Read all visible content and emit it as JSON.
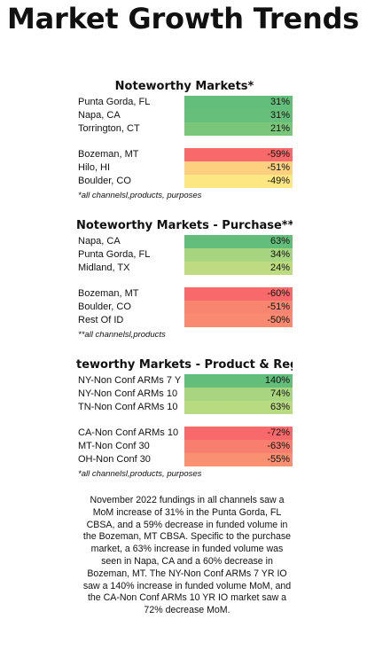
{
  "page_title": "Market Growth Trends",
  "sections": [
    {
      "title": "Noteworthy Markets*",
      "top_rows": [
        {
          "label": "Punta Gorda, FL",
          "value": "31%",
          "color": "#63be7b"
        },
        {
          "label": "Napa, CA",
          "value": "31%",
          "color": "#66bf7b"
        },
        {
          "label": "Torrington, CT",
          "value": "21%",
          "color": "#7ac77c"
        }
      ],
      "bottom_rows": [
        {
          "label": "Bozeman, MT",
          "value": "-59%",
          "color": "#f8696b"
        },
        {
          "label": "Hilo, HI",
          "value": "-51%",
          "color": "#fdd07f"
        },
        {
          "label": "Boulder, CO",
          "value": "-49%",
          "color": "#fde783"
        }
      ],
      "footnote": "*all channelsl,products, purposes"
    },
    {
      "title": "Noteworthy Markets - Purchase**",
      "top_rows": [
        {
          "label": "Napa, CA",
          "value": "63%",
          "color": "#63be7b"
        },
        {
          "label": "Punta Gorda, FL",
          "value": "34%",
          "color": "#a6d47f"
        },
        {
          "label": "Midland, TX",
          "value": "24%",
          "color": "#bedb81"
        }
      ],
      "bottom_rows": [
        {
          "label": "Bozeman, MT",
          "value": "-60%",
          "color": "#f8696b"
        },
        {
          "label": "Boulder, CO",
          "value": "-51%",
          "color": "#f88570"
        },
        {
          "label": "Rest Of ID",
          "value": "-50%",
          "color": "#f98a71"
        }
      ],
      "footnote": "**all channelsl,products"
    },
    {
      "title": "teworthy Markets - Product & Regic",
      "top_rows": [
        {
          "label": "NY-Non Conf ARMs 7 Y",
          "value": "140%",
          "color": "#63be7b"
        },
        {
          "label": "NY-Non Conf ARMs 10",
          "value": "74%",
          "color": "#aad580"
        },
        {
          "label": "TN-Non Conf ARMs 10",
          "value": "63%",
          "color": "#b8da80"
        }
      ],
      "bottom_rows": [
        {
          "label": "CA-Non Conf ARMs 10",
          "value": "-72%",
          "color": "#f8696b"
        },
        {
          "label": "MT-Non Conf 30",
          "value": "-63%",
          "color": "#f87e6f"
        },
        {
          "label": "OH-Non Conf 30",
          "value": "-55%",
          "color": "#f99072"
        }
      ],
      "footnote": "*all channelsl,products, purposes"
    }
  ],
  "summary": "November 2022 fundings in all channels saw a MoM increase of 31% in the Punta Gorda, FL CBSA, and a 59% decrease in funded volume in the Bozeman, MT CBSA. Specific to the purchase market, a 63% increase in funded volume was seen in Napa, CA and a 60% decrease in Bozeman, MT. The NY-Non Conf ARMs 7 YR IO saw a 140% increase in funded volume MoM, and the CA-Non Conf ARMs 10 YR IO market saw a 72% decrease MoM."
}
